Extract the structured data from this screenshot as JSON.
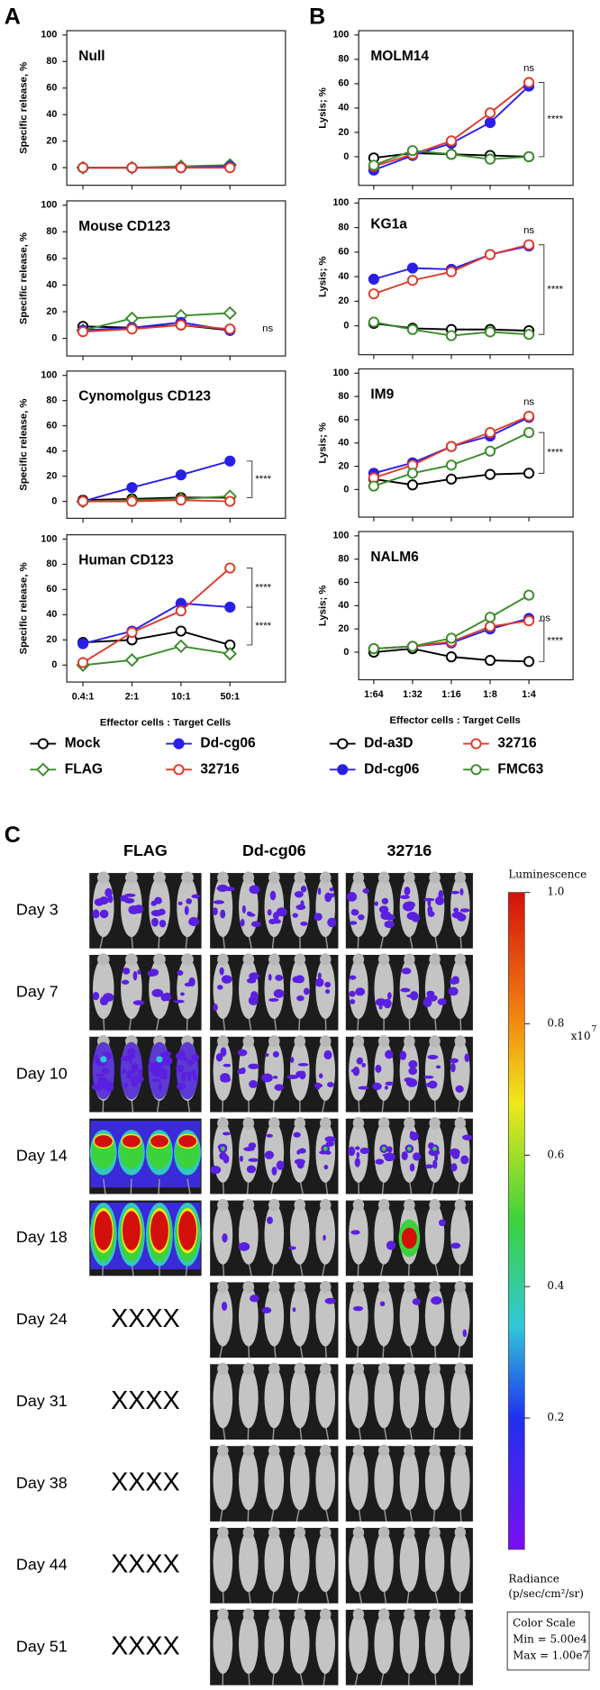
{
  "panel_labels": [
    "A",
    "B",
    "C"
  ],
  "chart_data": [
    {
      "type": "line",
      "title": "Null",
      "y_label": "Specific release, %",
      "categories": [
        null,
        null,
        null,
        null
      ],
      "ylim": [
        -10,
        100
      ],
      "yticks": [
        0,
        20,
        40,
        60,
        80,
        100
      ],
      "annotations": [],
      "series": [
        {
          "color": "#000000",
          "marker": "open-circle",
          "values": [
            0,
            0,
            0,
            1
          ]
        },
        {
          "color": "#3a8c2a",
          "marker": "open-diamond",
          "values": [
            0,
            0,
            1,
            2
          ]
        },
        {
          "color": "#2a1fe8",
          "marker": "filled-circle",
          "values": [
            0,
            0,
            0,
            1
          ]
        },
        {
          "color": "#e03a2a",
          "marker": "open-circle",
          "values": [
            0,
            0,
            0,
            0
          ]
        }
      ]
    },
    {
      "type": "line",
      "title": "Mouse CD123",
      "y_label": "Specific release, %",
      "categories": [
        null,
        null,
        null,
        null
      ],
      "ylim": [
        -10,
        100
      ],
      "yticks": [
        0,
        20,
        40,
        60,
        80,
        100
      ],
      "annotations": [
        "ns"
      ],
      "series": [
        {
          "color": "#000000",
          "marker": "open-circle",
          "values": [
            9,
            8,
            10,
            6
          ]
        },
        {
          "color": "#3a8c2a",
          "marker": "open-diamond",
          "values": [
            6,
            15,
            17,
            19
          ]
        },
        {
          "color": "#2a1fe8",
          "marker": "filled-circle",
          "values": [
            6,
            8,
            12,
            6
          ]
        },
        {
          "color": "#e03a2a",
          "marker": "open-circle",
          "values": [
            5,
            7,
            10,
            7
          ]
        }
      ]
    },
    {
      "type": "line",
      "title": "Cynomolgus CD123",
      "y_label": "Specific release, %",
      "categories": [
        null,
        null,
        null,
        null
      ],
      "ylim": [
        -10,
        100
      ],
      "yticks": [
        0,
        20,
        40,
        60,
        80,
        100
      ],
      "annotations": [
        "****"
      ],
      "series": [
        {
          "color": "#000000",
          "marker": "open-circle",
          "values": [
            1,
            2,
            3,
            3
          ]
        },
        {
          "color": "#3a8c2a",
          "marker": "open-diamond",
          "values": [
            0,
            1,
            2,
            4
          ]
        },
        {
          "color": "#2a1fe8",
          "marker": "filled-circle",
          "values": [
            0,
            11,
            21,
            32
          ]
        },
        {
          "color": "#e03a2a",
          "marker": "open-circle",
          "values": [
            0,
            0,
            1,
            0
          ]
        }
      ]
    },
    {
      "type": "line",
      "title": "Human CD123",
      "y_label": "Specific release, %",
      "x_label": "Effector cells : Target Cells",
      "categories": [
        "0.4:1",
        "2:1",
        "10:1",
        "50:1"
      ],
      "ylim": [
        -10,
        100
      ],
      "yticks": [
        0,
        20,
        40,
        60,
        80,
        100
      ],
      "annotations": [
        "****",
        "****"
      ],
      "series": [
        {
          "name": "Mock",
          "color": "#000000",
          "marker": "open-circle",
          "values": [
            18,
            20,
            27,
            16
          ]
        },
        {
          "name": "FLAG",
          "color": "#3a8c2a",
          "marker": "open-diamond",
          "values": [
            0,
            4,
            15,
            9
          ]
        },
        {
          "name": "Dd-cg06",
          "color": "#2a1fe8",
          "marker": "filled-circle",
          "values": [
            17,
            27,
            49,
            46
          ]
        },
        {
          "name": "32716",
          "color": "#e03a2a",
          "marker": "open-circle",
          "values": [
            2,
            26,
            43,
            77
          ]
        }
      ]
    },
    {
      "type": "line",
      "title": "MOLM14",
      "y_label": "Lysis; %",
      "categories": [
        null,
        null,
        null,
        null,
        null
      ],
      "ylim": [
        -20,
        100
      ],
      "yticks": [
        0,
        20,
        40,
        60,
        80,
        100
      ],
      "annotations": [
        "ns",
        "****"
      ],
      "series": [
        {
          "color": "#000000",
          "marker": "open-circle",
          "values": [
            -1,
            3,
            2,
            1,
            0
          ]
        },
        {
          "color": "#2a1fe8",
          "marker": "filled-circle",
          "values": [
            -11,
            1,
            11,
            28,
            58
          ]
        },
        {
          "color": "#e03a2a",
          "marker": "open-circle",
          "values": [
            -8,
            2,
            13,
            36,
            61
          ]
        },
        {
          "color": "#3a8c2a",
          "marker": "open-circle",
          "values": [
            -7,
            5,
            2,
            -2,
            0
          ]
        }
      ]
    },
    {
      "type": "line",
      "title": "KG1a",
      "y_label": "Lysis; %",
      "categories": [
        null,
        null,
        null,
        null,
        null
      ],
      "ylim": [
        -20,
        100
      ],
      "yticks": [
        0,
        20,
        40,
        60,
        80,
        100
      ],
      "annotations": [
        "ns",
        "****"
      ],
      "series": [
        {
          "color": "#000000",
          "marker": "open-circle",
          "values": [
            2,
            -2,
            -3,
            -3,
            -4
          ]
        },
        {
          "color": "#2a1fe8",
          "marker": "filled-circle",
          "values": [
            38,
            47,
            46,
            58,
            65
          ]
        },
        {
          "color": "#e03a2a",
          "marker": "open-circle",
          "values": [
            26,
            37,
            44,
            58,
            66
          ]
        },
        {
          "color": "#3a8c2a",
          "marker": "open-circle",
          "values": [
            3,
            -3,
            -8,
            -5,
            -7
          ]
        }
      ]
    },
    {
      "type": "line",
      "title": "IM9",
      "y_label": "Lysis; %",
      "categories": [
        null,
        null,
        null,
        null,
        null
      ],
      "ylim": [
        -20,
        100
      ],
      "yticks": [
        0,
        20,
        40,
        60,
        80,
        100
      ],
      "annotations": [
        "ns",
        "****"
      ],
      "series": [
        {
          "color": "#000000",
          "marker": "open-circle",
          "values": [
            9,
            4,
            9,
            13,
            14
          ]
        },
        {
          "color": "#2a1fe8",
          "marker": "filled-circle",
          "values": [
            14,
            23,
            37,
            46,
            62
          ]
        },
        {
          "color": "#e03a2a",
          "marker": "open-circle",
          "values": [
            10,
            21,
            37,
            49,
            63
          ]
        },
        {
          "color": "#3a8c2a",
          "marker": "open-circle",
          "values": [
            3,
            14,
            21,
            33,
            49
          ]
        }
      ]
    },
    {
      "type": "line",
      "title": "NALM6",
      "y_label": "Lysis; %",
      "x_label": "Effector cells : Target Cells",
      "categories": [
        "1:64",
        "1:32",
        "1:16",
        "1:8",
        "1:4"
      ],
      "ylim": [
        -20,
        100
      ],
      "yticks": [
        0,
        20,
        40,
        60,
        80,
        100
      ],
      "annotations": [
        "ns",
        "****"
      ],
      "series": [
        {
          "name": "Dd-a3D",
          "color": "#000000",
          "marker": "open-circle",
          "values": [
            0,
            3,
            -4,
            -7,
            -8
          ]
        },
        {
          "name": "Dd-cg06",
          "color": "#2a1fe8",
          "marker": "filled-circle",
          "values": [
            3,
            5,
            8,
            20,
            29
          ]
        },
        {
          "name": "32716",
          "color": "#e03a2a",
          "marker": "open-circle",
          "values": [
            3,
            5,
            9,
            22,
            27
          ]
        },
        {
          "name": "FMC63",
          "color": "#3a8c2a",
          "marker": "open-circle",
          "values": [
            3,
            5,
            12,
            30,
            49
          ]
        }
      ]
    }
  ],
  "panel_c": {
    "groups": [
      "FLAG",
      "Dd-cg06",
      "32716"
    ],
    "rows": [
      {
        "day": "Day 3"
      },
      {
        "day": "Day 7"
      },
      {
        "day": "Day 10"
      },
      {
        "day": "Day 14"
      },
      {
        "day": "Day 18"
      },
      {
        "day": "Day 24",
        "flag": "XXXX"
      },
      {
        "day": "Day 31",
        "flag": "XXXX"
      },
      {
        "day": "Day 38",
        "flag": "XXXX"
      },
      {
        "day": "Day 44",
        "flag": "XXXX"
      },
      {
        "day": "Day 51",
        "flag": "XXXX"
      }
    ]
  },
  "colorbar": {
    "title": "Luminescence",
    "lim": [
      0,
      1
    ],
    "ticks": [
      {
        "value": 1,
        "label": "1.0"
      },
      0.8,
      0.6,
      0.4,
      0.2
    ],
    "multiplier": "x10",
    "multiplier_exp": "7",
    "unit_label": [
      "Radiance",
      "(p/sec/cm²/sr)"
    ],
    "scale_box": [
      "Color Scale",
      "Min = 5.00e4",
      "Max = 1.00e7"
    ]
  }
}
